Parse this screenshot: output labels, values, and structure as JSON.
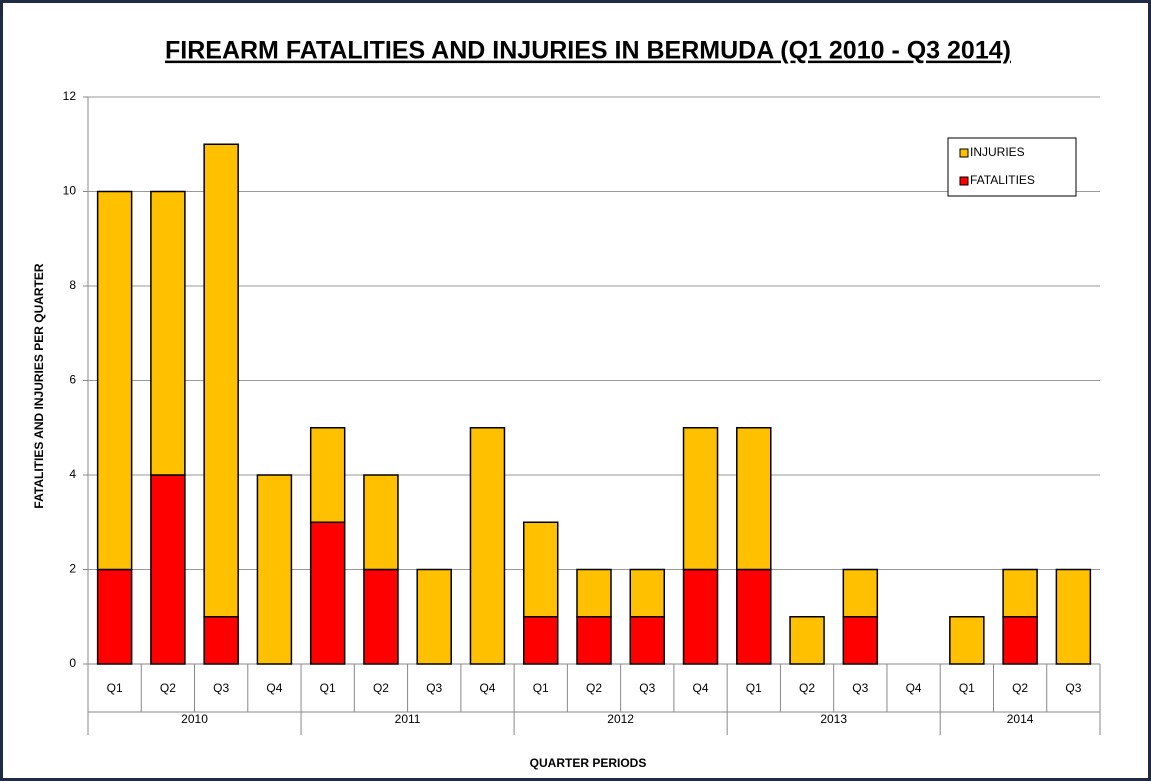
{
  "chart_data": {
    "type": "stacked-bar",
    "title": "FIREARM FATALITIES AND INJURIES IN BERMUDA (Q1 2010 - Q3 2014)",
    "x_label": "QUARTER PERIODS",
    "y_label": "FATALITIES  AND  INJURIES  PER  QUARTER",
    "groups": [
      {
        "label": "2010",
        "categories": [
          "Q1",
          "Q2",
          "Q3",
          "Q4"
        ]
      },
      {
        "label": "2011",
        "categories": [
          "Q1",
          "Q2",
          "Q3",
          "Q4"
        ]
      },
      {
        "label": "2012",
        "categories": [
          "Q1",
          "Q2",
          "Q3",
          "Q4"
        ]
      },
      {
        "label": "2013",
        "categories": [
          "Q1",
          "Q2",
          "Q3",
          "Q4"
        ]
      },
      {
        "label": "2014",
        "categories": [
          "Q1",
          "Q2",
          "Q3"
        ]
      }
    ],
    "series": [
      {
        "name": "FATALITIES",
        "color": "#ff0000",
        "values": [
          2,
          4,
          1,
          0,
          3,
          2,
          0,
          0,
          1,
          1,
          1,
          2,
          2,
          0,
          1,
          0,
          0,
          1,
          0
        ]
      },
      {
        "name": "INJURIES",
        "color": "#ffc000",
        "values": [
          8,
          6,
          10,
          4,
          2,
          2,
          2,
          5,
          2,
          1,
          1,
          3,
          3,
          1,
          1,
          0,
          1,
          1,
          2
        ]
      }
    ],
    "ylim": [
      0,
      12
    ],
    "yticks": [
      0,
      2,
      4,
      6,
      8,
      10,
      12
    ],
    "grid": true,
    "legend": "top-right"
  }
}
